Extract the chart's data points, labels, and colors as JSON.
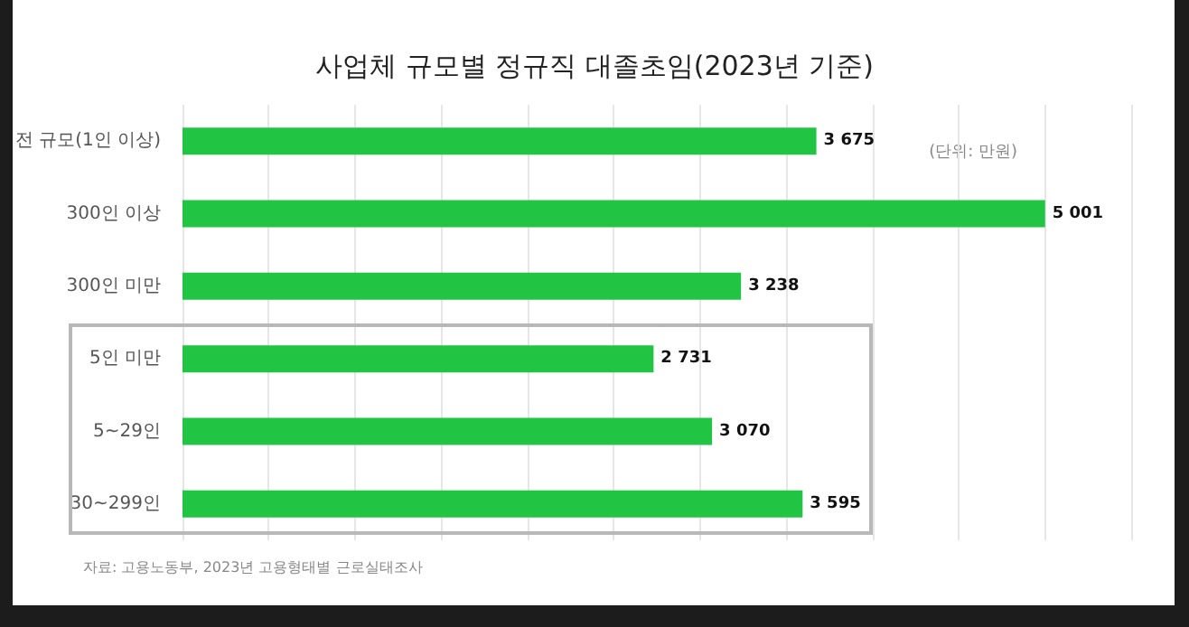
{
  "chart_data": {
    "type": "bar",
    "orientation": "horizontal",
    "title": "사업체 규모별 정규직 대졸초임(2023년 기준)",
    "categories": [
      "전 규모(1인 이상)",
      "300인 이상",
      "300인 미만",
      "5인 미만",
      "5~29인",
      "30~299인"
    ],
    "values": [
      3675,
      5001,
      3238,
      2731,
      3070,
      3595
    ],
    "value_labels": [
      "3 675",
      "5 001",
      "3 238",
      "2 731",
      "3 070",
      "3 595"
    ],
    "color": "#22c443",
    "xlim": [
      0,
      5500
    ],
    "xticks": [
      {
        "value": 0,
        "label": null
      },
      {
        "value": 500,
        "label": null
      },
      {
        "value": 1000,
        "label": null
      },
      {
        "value": 1500,
        "label": null
      },
      {
        "value": 2000,
        "label": null
      },
      {
        "value": 2500,
        "label": null
      },
      {
        "value": 3000,
        "label": null
      },
      {
        "value": 3500,
        "label": null
      },
      {
        "value": 4000,
        "label": null
      },
      {
        "value": 4500,
        "label": null
      },
      {
        "value": 5000,
        "label": null
      },
      {
        "value": 5500,
        "label": null
      }
    ],
    "grid": "x",
    "tick_labels": "y",
    "annotations": [
      "(단위: 만원)",
      "자료: 고용노동부, 2023년 고용형태별 근로실태조사"
    ]
  }
}
